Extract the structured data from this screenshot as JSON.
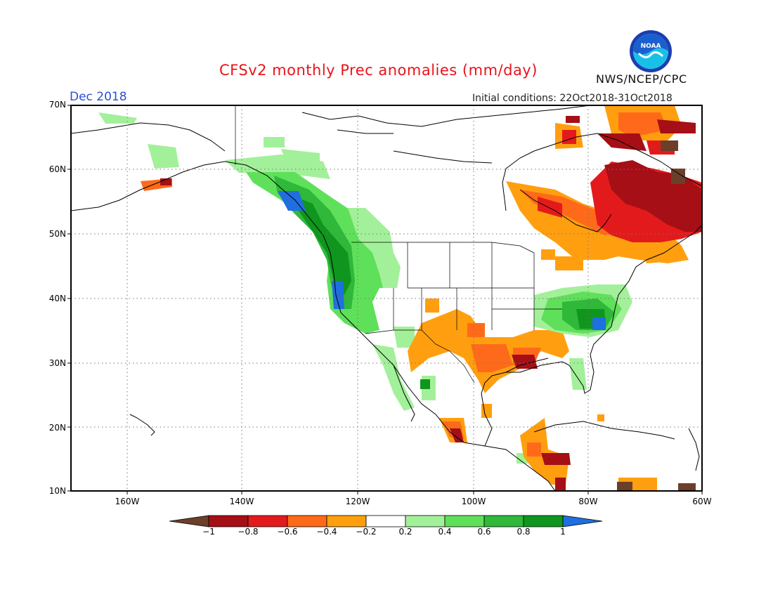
{
  "title": "CFSv2 monthly Prec anomalies (mm/day)",
  "month": "Dec 2018",
  "initial_conditions": "Initial conditions: 22Oct2018-31Oct2018",
  "agency": "NWS/NCEP/CPC",
  "logo_text": "NOAA",
  "lat_labels": [
    "70N",
    "60N",
    "50N",
    "40N",
    "30N",
    "20N",
    "10N"
  ],
  "lon_labels": [
    "160W",
    "140W",
    "120W",
    "100W",
    "80W",
    "60W"
  ],
  "colorbar": {
    "labels": [
      "−1",
      "−0.8",
      "−0.6",
      "−0.4",
      "−0.2",
      "0.2",
      "0.4",
      "0.6",
      "0.8",
      "1"
    ],
    "colors": [
      "#6b3f2a",
      "#a50f15",
      "#e31a1c",
      "#ff6a1a",
      "#ff9f0f",
      "#ffffff",
      "#a3f09a",
      "#5fe05a",
      "#2fb83a",
      "#10961e",
      "#1f6fe0"
    ]
  },
  "legend_colors": {
    "below_minus1": "#6b3f2a",
    "m08": "#a50f15",
    "m06": "#e31a1c",
    "m04": "#ff6a1a",
    "m02": "#ff9f0f",
    "p02": "#a3f09a",
    "p04": "#5fe05a",
    "p06": "#2fb83a",
    "p08": "#10961e",
    "above1": "#1f6fe0"
  }
}
